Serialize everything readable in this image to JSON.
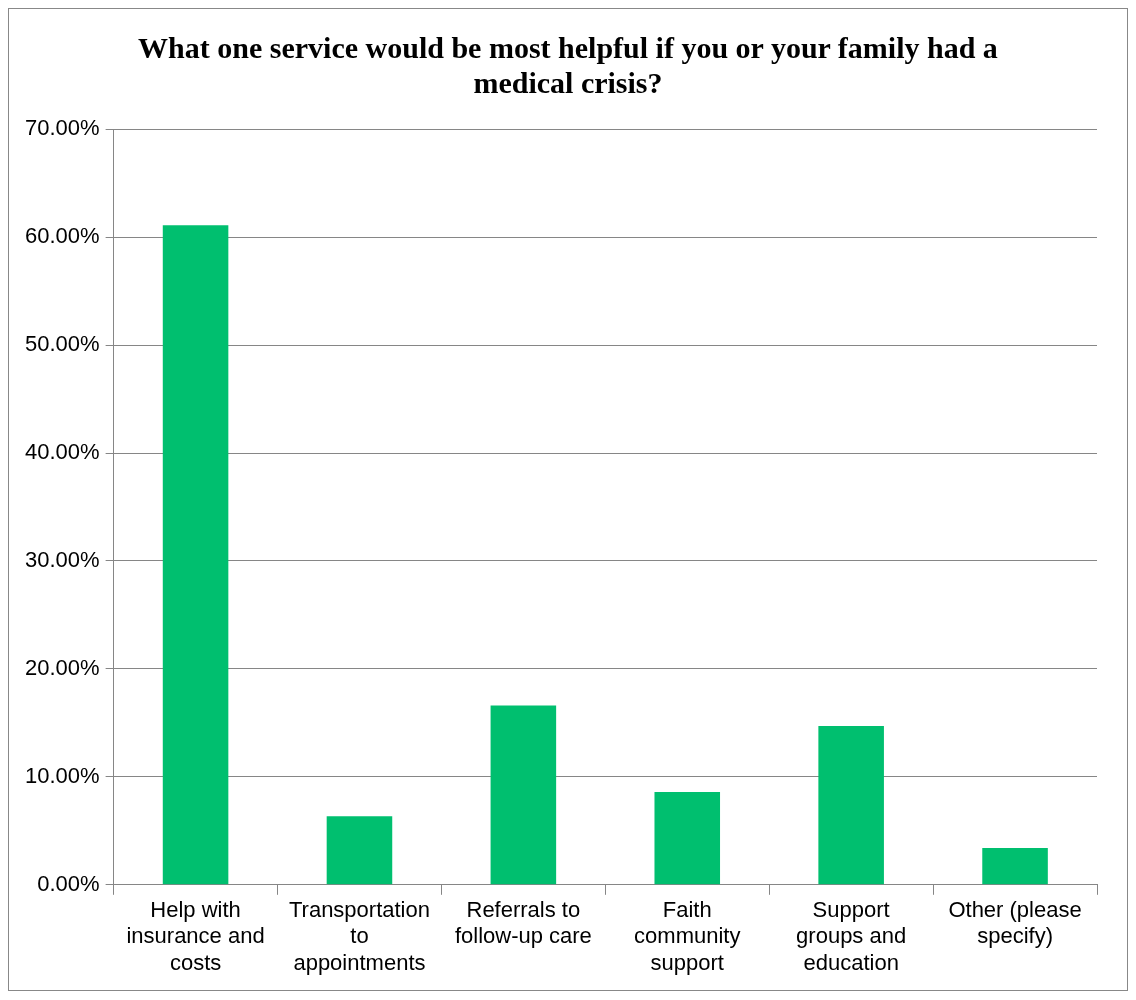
{
  "chart_data": {
    "type": "bar",
    "title": "What one service would be most helpful if you or your family had a medical crisis?",
    "categories": [
      "Help with insurance and costs",
      "Transportation to appointments",
      "Referrals to follow-up care",
      "Faith community support",
      "Support groups and education",
      "Other (please specify)"
    ],
    "values": [
      61.1,
      6.35,
      16.6,
      8.6,
      14.7,
      3.4
    ],
    "color": "#00bf6f",
    "ylim": [
      0,
      70
    ],
    "yticks": [
      {
        "value": 0,
        "label": "0.00%"
      },
      {
        "value": 10,
        "label": "10.00%"
      },
      {
        "value": 20,
        "label": "20.00%"
      },
      {
        "value": 30,
        "label": "30.00%"
      },
      {
        "value": 40,
        "label": "40.00%"
      },
      {
        "value": 50,
        "label": "50.00%"
      },
      {
        "value": 60,
        "label": "60.00%"
      },
      {
        "value": 70,
        "label": "70.00%"
      }
    ],
    "grid": "y",
    "legend": false
  }
}
